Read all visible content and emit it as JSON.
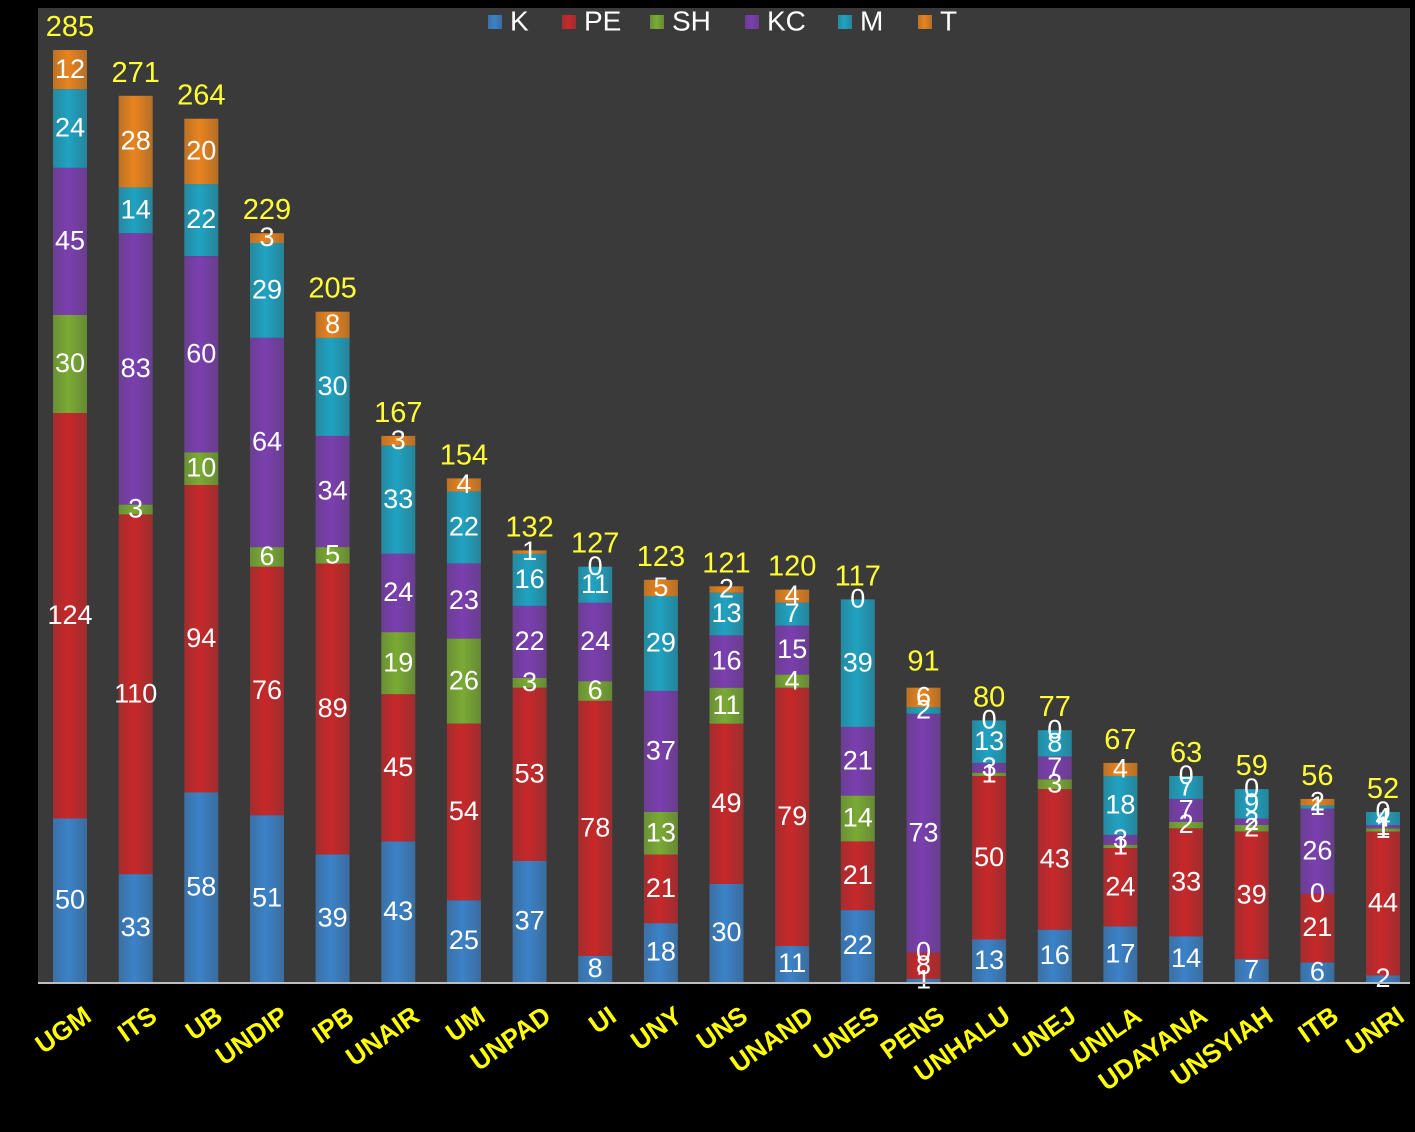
{
  "chart_data": {
    "type": "bar",
    "stacked": true,
    "categories": [
      "UGM",
      "ITS",
      "UB",
      "UNDIP",
      "IPB",
      "UNAIR",
      "UM",
      "UNPAD",
      "UI",
      "UNY",
      "UNS",
      "UNAND",
      "UNES",
      "PENS",
      "UNHALU",
      "UNEJ",
      "UNILA",
      "UDAYANA",
      "UNSYIAH",
      "ITB",
      "UNRI"
    ],
    "totals": [
      285,
      271,
      264,
      229,
      205,
      167,
      154,
      132,
      127,
      123,
      121,
      120,
      117,
      91,
      80,
      77,
      67,
      63,
      59,
      56,
      52
    ],
    "series": [
      {
        "name": "K",
        "color": "#3b82c8",
        "values": [
          50,
          33,
          58,
          51,
          39,
          43,
          25,
          37,
          8,
          18,
          30,
          11,
          22,
          1,
          13,
          16,
          17,
          14,
          7,
          6,
          2
        ]
      },
      {
        "name": "PE",
        "color": "#c8282a",
        "values": [
          124,
          110,
          94,
          76,
          89,
          45,
          54,
          53,
          78,
          21,
          49,
          79,
          21,
          8,
          50,
          43,
          24,
          33,
          39,
          21,
          44
        ]
      },
      {
        "name": "SH",
        "color": "#7aab34",
        "values": [
          30,
          3,
          10,
          6,
          5,
          19,
          26,
          3,
          6,
          13,
          11,
          4,
          14,
          0,
          1,
          3,
          1,
          2,
          2,
          0,
          1
        ]
      },
      {
        "name": "KC",
        "color": "#7b3fb0",
        "values": [
          45,
          83,
          60,
          64,
          34,
          24,
          23,
          22,
          24,
          37,
          16,
          15,
          21,
          73,
          3,
          7,
          3,
          7,
          2,
          26,
          1
        ]
      },
      {
        "name": "M",
        "color": "#1fa3c2",
        "values": [
          24,
          14,
          22,
          29,
          30,
          33,
          22,
          16,
          11,
          29,
          13,
          7,
          39,
          2,
          13,
          8,
          18,
          7,
          9,
          1,
          4
        ]
      },
      {
        "name": "T",
        "color": "#e8841f",
        "values": [
          12,
          28,
          20,
          3,
          8,
          3,
          4,
          1,
          0,
          5,
          2,
          4,
          0,
          6,
          0,
          0,
          4,
          0,
          0,
          2,
          0
        ]
      }
    ],
    "legend_position": "top-center",
    "ylim": [
      0,
      300
    ],
    "title": "",
    "xlabel": "",
    "ylabel": "",
    "grid": false
  }
}
